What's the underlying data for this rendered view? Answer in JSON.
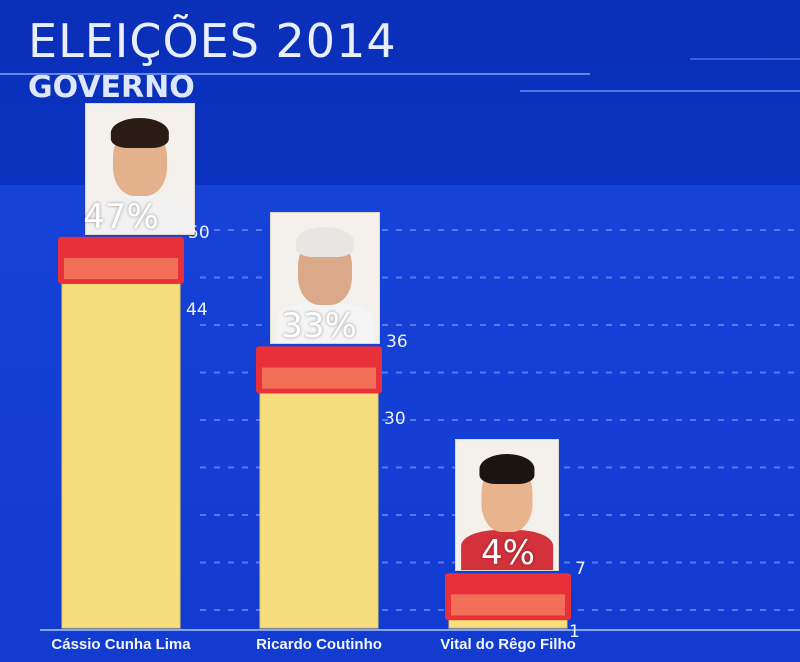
{
  "header": {
    "title": "ELEIÇÕES 2014",
    "subtitle": "GOVERNO"
  },
  "colors": {
    "background": "#0b35c4",
    "bar_fill": "#f6dd7d",
    "margin_band": "#e8303a",
    "gridline": "#6d8ff0"
  },
  "chart_data": {
    "type": "bar",
    "title": "",
    "xlabel": "",
    "ylabel": "",
    "ylim": [
      0,
      56
    ],
    "grid": true,
    "categories": [
      "Cássio Cunha Lima",
      "Ricardo Coutinho",
      "Vital do Rêgo Filho"
    ],
    "series": [
      {
        "values": [
          47,
          33,
          4
        ],
        "value_labels": [
          "47%",
          "33%",
          "4%"
        ],
        "upper": [
          50,
          36,
          7
        ],
        "lower": [
          44,
          30,
          1
        ],
        "upper_labels": [
          "50",
          "36",
          "7"
        ],
        "lower_labels": [
          "44",
          "30",
          "1"
        ]
      }
    ]
  }
}
